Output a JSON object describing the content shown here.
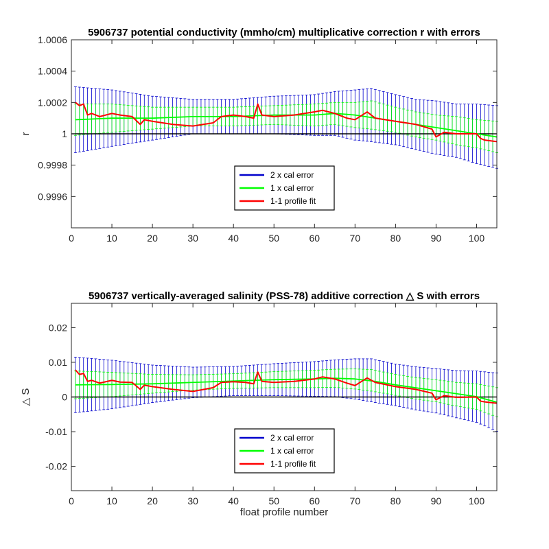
{
  "chart_data": [
    {
      "type": "line",
      "title": "5906737 potential conductivity (mmho/cm) multiplicative correction r with errors",
      "xlabel": "",
      "ylabel": "r",
      "xlim": [
        0,
        105
      ],
      "ylim": [
        0.9994,
        1.0006
      ],
      "xticks": [
        "0",
        "10",
        "20",
        "30",
        "40",
        "50",
        "60",
        "70",
        "80",
        "90",
        "100"
      ],
      "yticks": [
        "0.9996",
        "0.9998",
        "1",
        "1.0002",
        "1.0004",
        "1.0006"
      ],
      "reference_line": 1.0,
      "legend": [
        "2 x cal error",
        "1 x cal error",
        "1-1 profile fit"
      ],
      "legend_position": "lower-center",
      "series": [
        {
          "name": "1 x cal error",
          "color": "#00ff00",
          "x": [
            1,
            10,
            20,
            30,
            40,
            50,
            60,
            65,
            70,
            75,
            80,
            90,
            100,
            105
          ],
          "y": [
            1.00009,
            1.0001,
            1.0001,
            1.00011,
            1.00011,
            1.00012,
            1.00012,
            1.00013,
            1.00012,
            1.0001,
            1.00008,
            1.00004,
            1.0,
            0.99998
          ]
        },
        {
          "name": "1-1 profile fit",
          "color": "#ff0000",
          "x": [
            1,
            2,
            3,
            4,
            5,
            7,
            10,
            12,
            15,
            17,
            18,
            20,
            25,
            30,
            35,
            37,
            40,
            43,
            45,
            46,
            47,
            50,
            55,
            60,
            62,
            65,
            68,
            70,
            73,
            75,
            80,
            85,
            89,
            90,
            92,
            95,
            100,
            101,
            102,
            105
          ],
          "y": [
            1.0002,
            1.00018,
            1.00019,
            1.00012,
            1.00013,
            1.00011,
            1.00013,
            1.00012,
            1.00011,
            1.00006,
            1.00009,
            1.00008,
            1.00006,
            1.00005,
            1.00007,
            1.00011,
            1.00012,
            1.00011,
            1.0001,
            1.00019,
            1.00012,
            1.00011,
            1.00012,
            1.00014,
            1.00015,
            1.00013,
            1.0001,
            1.00009,
            1.00014,
            1.0001,
            1.00008,
            1.00006,
            1.00003,
            0.99998,
            1.00001,
            1.0,
            1.0,
            0.99997,
            0.99996,
            0.99995
          ]
        }
      ],
      "error_bars": [
        {
          "name": "2 x cal error",
          "color": "#0000cc",
          "x": [
            1,
            10,
            20,
            30,
            40,
            50,
            60,
            65,
            70,
            74,
            80,
            85,
            90,
            95,
            100,
            105
          ],
          "center": [
            1.00009,
            1.0001,
            1.0001,
            1.00011,
            1.00011,
            1.00012,
            1.00012,
            1.00013,
            1.00012,
            1.00012,
            1.00009,
            1.00006,
            1.00004,
            1.00002,
            1.0,
            0.99998
          ],
          "half_width": [
            0.00021,
            0.00018,
            0.00014,
            0.00011,
            0.00011,
            0.00012,
            0.00013,
            0.00014,
            0.00016,
            0.00017,
            0.00016,
            0.00016,
            0.00017,
            0.00017,
            0.00019,
            0.0002
          ]
        },
        {
          "name": "1 x cal error",
          "color": "#00ff00",
          "x": [
            1,
            10,
            20,
            30,
            40,
            50,
            60,
            65,
            70,
            74,
            80,
            85,
            90,
            95,
            100,
            105
          ],
          "center": [
            1.00009,
            1.0001,
            1.0001,
            1.00011,
            1.00011,
            1.00012,
            1.00012,
            1.00013,
            1.00012,
            1.00012,
            1.00009,
            1.00006,
            1.00004,
            1.00002,
            1.0,
            0.99998
          ],
          "half_width": [
            0.0001,
            9e-05,
            7e-05,
            6e-05,
            6e-05,
            6e-05,
            7e-05,
            7e-05,
            8e-05,
            9e-05,
            8e-05,
            8e-05,
            8e-05,
            9e-05,
            9e-05,
            0.0001
          ]
        }
      ]
    },
    {
      "type": "line",
      "title": "5906737 vertically-averaged salinity (PSS-78) additive correction △ S with errors",
      "xlabel": "float profile number",
      "ylabel": "△ S",
      "xlim": [
        0,
        105
      ],
      "ylim": [
        -0.027,
        0.027
      ],
      "xticks": [
        "0",
        "10",
        "20",
        "30",
        "40",
        "50",
        "60",
        "70",
        "80",
        "90",
        "100"
      ],
      "yticks": [
        "-0.02",
        "-0.01",
        "0",
        "0.01",
        "0.02"
      ],
      "reference_line": 0.0,
      "legend": [
        "2 x cal error",
        "1 x cal error",
        "1-1 profile fit"
      ],
      "legend_position": "lower-center",
      "series": [
        {
          "name": "1 x cal error",
          "color": "#00ff00",
          "x": [
            1,
            10,
            20,
            30,
            40,
            50,
            60,
            65,
            70,
            75,
            80,
            90,
            100,
            105
          ],
          "y": [
            0.0035,
            0.0036,
            0.0038,
            0.0042,
            0.0046,
            0.005,
            0.0052,
            0.0054,
            0.0052,
            0.0045,
            0.0035,
            0.0018,
            0.0001,
            -0.0015
          ]
        },
        {
          "name": "1-1 profile fit",
          "color": "#ff0000",
          "x": [
            1,
            2,
            3,
            4,
            5,
            7,
            10,
            12,
            15,
            17,
            18,
            20,
            25,
            30,
            35,
            37,
            40,
            43,
            45,
            46,
            47,
            50,
            55,
            60,
            62,
            65,
            68,
            70,
            73,
            75,
            80,
            85,
            89,
            90,
            92,
            95,
            100,
            101,
            102,
            105
          ],
          "y": [
            0.0078,
            0.0065,
            0.0068,
            0.0045,
            0.0048,
            0.004,
            0.0048,
            0.0043,
            0.0042,
            0.0022,
            0.0034,
            0.003,
            0.0022,
            0.0016,
            0.0027,
            0.0042,
            0.0044,
            0.0042,
            0.0038,
            0.0072,
            0.0045,
            0.0042,
            0.0045,
            0.0052,
            0.0058,
            0.0052,
            0.004,
            0.0033,
            0.0055,
            0.0042,
            0.003,
            0.0022,
            0.0011,
            -0.0008,
            0.0004,
            -0.0001,
            0.0,
            -0.0012,
            -0.0014,
            -0.0018
          ]
        }
      ],
      "error_bars": [
        {
          "name": "2 x cal error",
          "color": "#0000cc",
          "x": [
            1,
            10,
            20,
            30,
            40,
            50,
            60,
            65,
            70,
            74,
            80,
            85,
            90,
            95,
            100,
            105
          ],
          "center": [
            0.0035,
            0.0036,
            0.0038,
            0.0042,
            0.0046,
            0.005,
            0.0052,
            0.0054,
            0.0052,
            0.0048,
            0.0035,
            0.0025,
            0.0018,
            0.0008,
            0.0001,
            -0.0015
          ],
          "half_width": [
            0.008,
            0.007,
            0.0054,
            0.0044,
            0.0042,
            0.0046,
            0.005,
            0.0053,
            0.0058,
            0.0062,
            0.006,
            0.0062,
            0.0064,
            0.0068,
            0.0074,
            0.0084
          ]
        },
        {
          "name": "1 x cal error",
          "color": "#00ff00",
          "x": [
            1,
            10,
            20,
            30,
            40,
            50,
            60,
            65,
            70,
            74,
            80,
            85,
            90,
            95,
            100,
            105
          ],
          "center": [
            0.0035,
            0.0036,
            0.0038,
            0.0042,
            0.0046,
            0.005,
            0.0052,
            0.0054,
            0.0052,
            0.0048,
            0.0035,
            0.0025,
            0.0018,
            0.0008,
            0.0001,
            -0.0015
          ],
          "half_width": [
            0.004,
            0.0035,
            0.0027,
            0.0022,
            0.0021,
            0.0023,
            0.0025,
            0.0026,
            0.0029,
            0.0031,
            0.003,
            0.0031,
            0.0032,
            0.0034,
            0.0037,
            0.0042
          ]
        }
      ]
    }
  ]
}
